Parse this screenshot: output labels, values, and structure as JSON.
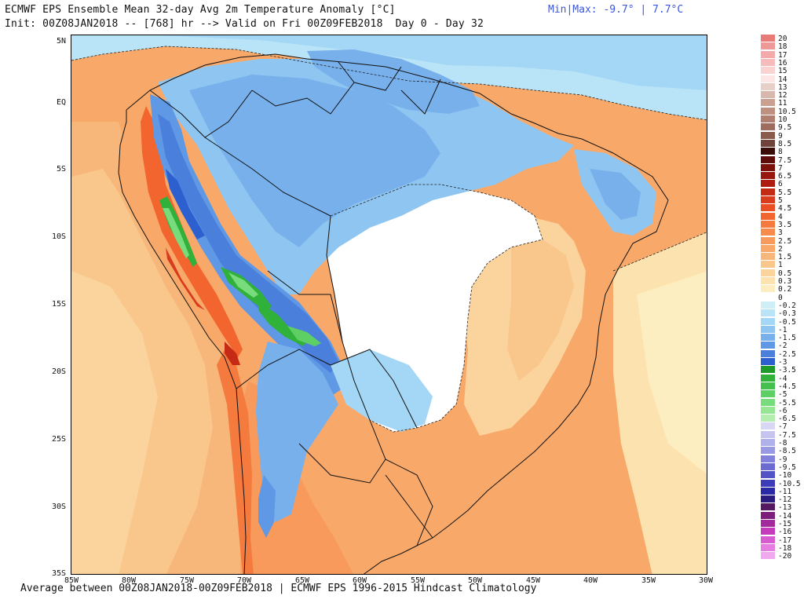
{
  "header": {
    "title_line1": "ECMWF EPS Ensemble Mean 32-day Avg 2m Temperature Anomaly [°C]",
    "title_line2": "Init: 00Z08JAN2018 -- [768] hr --> Valid on Fri 00Z09FEB2018  Day 0 - Day 32",
    "minmax": "Min|Max: -9.7° | 7.7°C"
  },
  "footer": "Average between 00Z08JAN2018-00Z09FEB2018 | ECMWF EPS 1996-2015 Hindcast Climatology",
  "map": {
    "lat_labels": [
      "5N",
      "EQ",
      "5S",
      "10S",
      "15S",
      "20S",
      "25S",
      "30S",
      "35S"
    ],
    "lon_labels": [
      "85W",
      "80W",
      "75W",
      "70W",
      "65W",
      "60W",
      "55W",
      "50W",
      "45W",
      "40W",
      "35W",
      "30W"
    ]
  },
  "legend": [
    {
      "label": "20",
      "color": "#e87a78"
    },
    {
      "label": "18",
      "color": "#ee9898"
    },
    {
      "label": "17",
      "color": "#f4aaaa"
    },
    {
      "label": "16",
      "color": "#f6bcbc"
    },
    {
      "label": "15",
      "color": "#f9d2d2"
    },
    {
      "label": "14",
      "color": "#fde6e6"
    },
    {
      "label": "13",
      "color": "#e6d0c8"
    },
    {
      "label": "12",
      "color": "#d8b8ac"
    },
    {
      "label": "11",
      "color": "#cba091"
    },
    {
      "label": "10.5",
      "color": "#bf8f80"
    },
    {
      "label": "10",
      "color": "#b07f70"
    },
    {
      "label": "9.5",
      "color": "#9e6d5f"
    },
    {
      "label": "9",
      "color": "#8a5a4d"
    },
    {
      "label": "8.5",
      "color": "#6f4339"
    },
    {
      "label": "8",
      "color": "#3c0d08"
    },
    {
      "label": "7.5",
      "color": "#5e0d0a"
    },
    {
      "label": "7",
      "color": "#7c110b"
    },
    {
      "label": "6.5",
      "color": "#97160d"
    },
    {
      "label": "6",
      "color": "#ad1d10"
    },
    {
      "label": "5.5",
      "color": "#c52a14"
    },
    {
      "label": "5",
      "color": "#d93c1c"
    },
    {
      "label": "4.5",
      "color": "#ea4f24"
    },
    {
      "label": "4",
      "color": "#f2652f"
    },
    {
      "label": "3.5",
      "color": "#f57a3d"
    },
    {
      "label": "3",
      "color": "#f78b4b"
    },
    {
      "label": "2.5",
      "color": "#f89a5b"
    },
    {
      "label": "2",
      "color": "#f8a96a"
    },
    {
      "label": "1.5",
      "color": "#f8b77a"
    },
    {
      "label": "1",
      "color": "#f9c68b"
    },
    {
      "label": "0.5",
      "color": "#fbd49d"
    },
    {
      "label": "0.3",
      "color": "#fce2ae"
    },
    {
      "label": "0.2",
      "color": "#fdeec2"
    },
    {
      "label": "0",
      "color": "#ffffff"
    },
    {
      "label": "-0.2",
      "color": "#cfeff7"
    },
    {
      "label": "-0.3",
      "color": "#b9e4f7"
    },
    {
      "label": "-0.5",
      "color": "#a4d6f5"
    },
    {
      "label": "-1",
      "color": "#8fc6f1"
    },
    {
      "label": "-1.5",
      "color": "#78b0ec"
    },
    {
      "label": "-2",
      "color": "#5f98e4"
    },
    {
      "label": "-2.5",
      "color": "#4a80dc"
    },
    {
      "label": "-3",
      "color": "#2e5fcf"
    },
    {
      "label": "-3.5",
      "color": "#1e9b2a"
    },
    {
      "label": "-4",
      "color": "#2fb13a"
    },
    {
      "label": "-4.5",
      "color": "#45c04e"
    },
    {
      "label": "-5",
      "color": "#5dcf64"
    },
    {
      "label": "-5.5",
      "color": "#78dc7c"
    },
    {
      "label": "-6",
      "color": "#96e695"
    },
    {
      "label": "-6.5",
      "color": "#b3eeb0"
    },
    {
      "label": "-7",
      "color": "#d8d8f4"
    },
    {
      "label": "-7.5",
      "color": "#c5c5ef"
    },
    {
      "label": "-8",
      "color": "#b0b0ea"
    },
    {
      "label": "-8.5",
      "color": "#9a9ae4"
    },
    {
      "label": "-9",
      "color": "#8282dc"
    },
    {
      "label": "-9.5",
      "color": "#6b6bd2"
    },
    {
      "label": "-10",
      "color": "#5353c6"
    },
    {
      "label": "-10.5",
      "color": "#3c3cb8"
    },
    {
      "label": "-11",
      "color": "#2a2aa6"
    },
    {
      "label": "-12",
      "color": "#2a1c7e"
    },
    {
      "label": "-13",
      "color": "#53185f"
    },
    {
      "label": "-14",
      "color": "#7c1e7a"
    },
    {
      "label": "-15",
      "color": "#a32a9c"
    },
    {
      "label": "-16",
      "color": "#c43bbb"
    },
    {
      "label": "-17",
      "color": "#d95bd2"
    },
    {
      "label": "-18",
      "color": "#e57ee0"
    },
    {
      "label": "-20",
      "color": "#f0a8ee"
    }
  ]
}
